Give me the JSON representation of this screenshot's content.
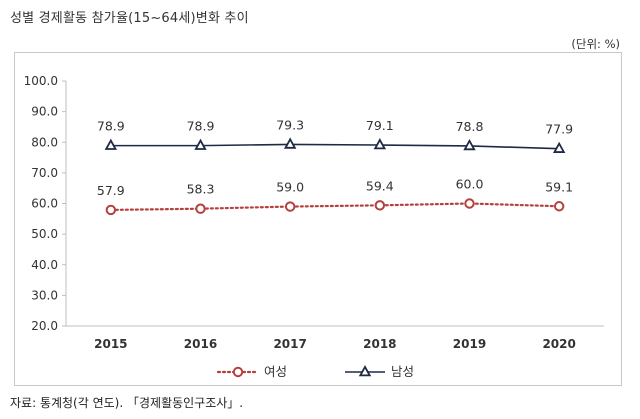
{
  "title": "성별 경제활동 참가율(15~64세)변화 추이",
  "unit_note": "(단위: %)",
  "source": "자료: 통계청(각 연도). 「경제활동인구조사」.",
  "colors": {
    "female": "#b5403d",
    "male": "#1f2a44",
    "axis": "#bfbfbf"
  },
  "chart_data": {
    "type": "line",
    "categories": [
      "2015",
      "2016",
      "2017",
      "2018",
      "2019",
      "2020"
    ],
    "ylim": [
      20,
      100
    ],
    "yticks": [
      "20.0",
      "30.0",
      "40.0",
      "50.0",
      "60.0",
      "70.0",
      "80.0",
      "90.0",
      "100.0"
    ],
    "grid": false,
    "legend_position": "bottom",
    "series": [
      {
        "name": "여성",
        "values": [
          57.9,
          58.3,
          59.0,
          59.4,
          60.0,
          59.1
        ],
        "labels": [
          "57.9",
          "58.3",
          "59.0",
          "59.4",
          "60.0",
          "59.1"
        ],
        "marker": "circle",
        "line_style": "dotted"
      },
      {
        "name": "남성",
        "values": [
          78.9,
          78.9,
          79.3,
          79.1,
          78.8,
          77.9
        ],
        "labels": [
          "78.9",
          "78.9",
          "79.3",
          "79.1",
          "78.8",
          "77.9"
        ],
        "marker": "triangle",
        "line_style": "solid"
      }
    ]
  }
}
